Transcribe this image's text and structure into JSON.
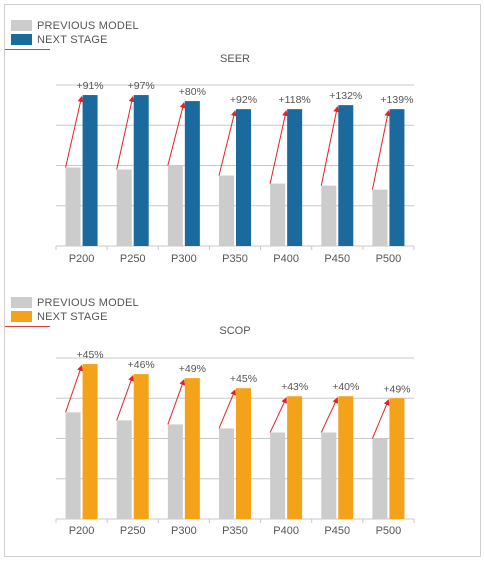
{
  "colors": {
    "previous": "#cccccc",
    "next_seer": "#1b6a9e",
    "next_scop": "#f5a21b",
    "arrow": "#e02424",
    "grid": "#c8c8c8"
  },
  "chart_data": [
    {
      "type": "bar",
      "title": "SEER",
      "categories": [
        "P200",
        "P250",
        "P300",
        "P350",
        "P400",
        "P450",
        "P500"
      ],
      "series": [
        {
          "name": "PREVIOUS MODEL",
          "values": [
            3.9,
            3.8,
            4.0,
            3.5,
            3.1,
            3.0,
            2.8
          ]
        },
        {
          "name": "NEXT STAGE",
          "values": [
            7.5,
            7.5,
            7.2,
            6.8,
            6.8,
            7.0,
            6.8
          ]
        }
      ],
      "labels": [
        "+91%",
        "+97%",
        "+80%",
        "+92%",
        "+118%",
        "+132%",
        "+139%"
      ],
      "ylim": [
        0,
        8
      ],
      "grid": true,
      "legend": {
        "position": "top-left",
        "entries": [
          "PREVIOUS MODEL",
          "NEXT STAGE"
        ]
      }
    },
    {
      "type": "bar",
      "title": "SCOP",
      "categories": [
        "P200",
        "P250",
        "P300",
        "P350",
        "P400",
        "P450",
        "P500"
      ],
      "series": [
        {
          "name": "PREVIOUS MODEL",
          "values": [
            5.3,
            4.9,
            4.7,
            4.5,
            4.3,
            4.3,
            4.0
          ]
        },
        {
          "name": "NEXT STAGE",
          "values": [
            7.7,
            7.2,
            7.0,
            6.5,
            6.1,
            6.1,
            6.0
          ]
        }
      ],
      "labels": [
        "+45%",
        "+46%",
        "+49%",
        "+45%",
        "+43%",
        "+40%",
        "+49%"
      ],
      "ylim": [
        0,
        8
      ],
      "grid": true,
      "legend": {
        "position": "top-left",
        "entries": [
          "PREVIOUS MODEL",
          "NEXT STAGE"
        ]
      }
    }
  ]
}
